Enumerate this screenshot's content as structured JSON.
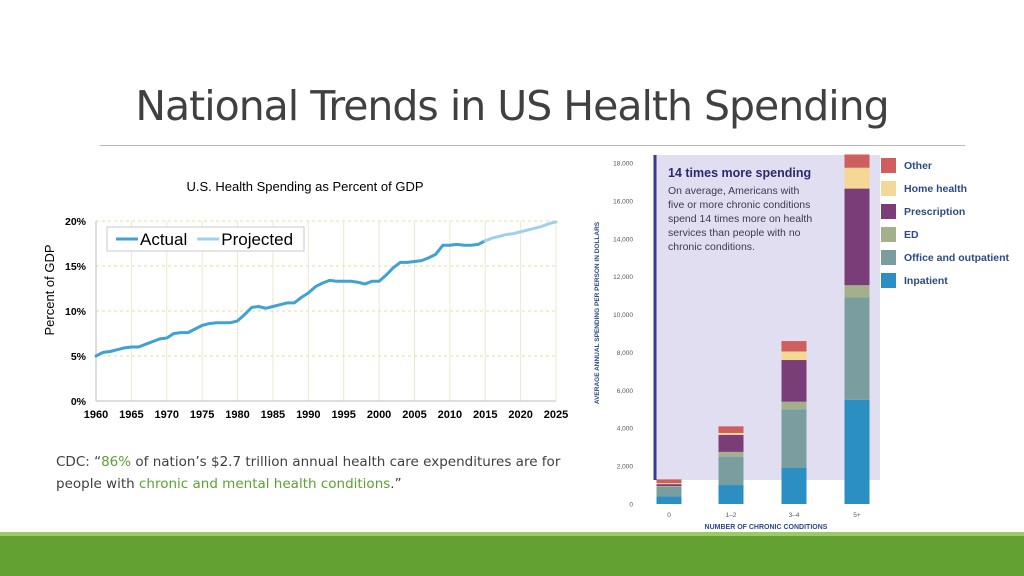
{
  "slide": {
    "title": "National Trends in US Health Spending"
  },
  "caption": {
    "prefix": "CDC: “",
    "highlight1": "86%",
    "middle": " of nation’s $2.7 trillion annual health care expenditures are for people with ",
    "highlight2": "chronic and mental health conditions",
    "suffix": ".”"
  },
  "chart_data": [
    {
      "type": "line",
      "title": "U.S. Health Spending as Percent of GDP",
      "xlabel": "",
      "ylabel": "Percent of GDP",
      "xlim": [
        1960,
        2025
      ],
      "ylim": [
        0,
        20
      ],
      "xticks": [
        1960,
        1965,
        1970,
        1975,
        1980,
        1985,
        1990,
        1995,
        2000,
        2005,
        2010,
        2015,
        2020,
        2025
      ],
      "yticks": [
        0,
        5,
        10,
        15,
        20
      ],
      "ytick_labels": [
        "0%",
        "5%",
        "10%",
        "15%",
        "20%"
      ],
      "legend": "top-left",
      "series": [
        {
          "name": "Actual",
          "color": "#3fa2d3",
          "x": [
            1960,
            1961,
            1962,
            1963,
            1964,
            1965,
            1966,
            1967,
            1968,
            1969,
            1970,
            1971,
            1972,
            1973,
            1974,
            1975,
            1976,
            1977,
            1978,
            1979,
            1980,
            1981,
            1982,
            1983,
            1984,
            1985,
            1986,
            1987,
            1988,
            1989,
            1990,
            1991,
            1992,
            1993,
            1994,
            1995,
            1996,
            1997,
            1998,
            1999,
            2000,
            2001,
            2002,
            2003,
            2004,
            2005,
            2006,
            2007,
            2008,
            2009,
            2010,
            2011,
            2012,
            2013,
            2014,
            2015
          ],
          "y": [
            5.0,
            5.4,
            5.5,
            5.7,
            5.9,
            6.0,
            6.0,
            6.3,
            6.6,
            6.9,
            7.0,
            7.5,
            7.6,
            7.6,
            8.0,
            8.4,
            8.6,
            8.7,
            8.7,
            8.7,
            8.9,
            9.6,
            10.4,
            10.5,
            10.3,
            10.5,
            10.7,
            10.9,
            10.9,
            11.5,
            12.0,
            12.7,
            13.1,
            13.4,
            13.3,
            13.3,
            13.3,
            13.2,
            13.0,
            13.3,
            13.3,
            14.0,
            14.8,
            15.4,
            15.4,
            15.5,
            15.6,
            15.9,
            16.3,
            17.3,
            17.3,
            17.4,
            17.3,
            17.3,
            17.4,
            17.8
          ]
        },
        {
          "name": "Projected",
          "color": "#9fd1ee",
          "x": [
            2015,
            2016,
            2017,
            2018,
            2019,
            2020,
            2021,
            2022,
            2023,
            2024,
            2025
          ],
          "y": [
            17.8,
            18.1,
            18.3,
            18.5,
            18.6,
            18.8,
            19.0,
            19.2,
            19.4,
            19.7,
            19.9
          ]
        }
      ]
    },
    {
      "type": "bar",
      "stacked": true,
      "xlabel": "NUMBER OF CHRONIC CONDITIONS",
      "ylabel": "AVERAGE ANNUAL SPENDING PER PERSON IN DOLLARS",
      "ylim": [
        0,
        18000
      ],
      "yticks": [
        0,
        2000,
        4000,
        6000,
        8000,
        10000,
        12000,
        14000,
        16000,
        18000
      ],
      "ytick_labels": [
        "0",
        "2,000",
        "4,000",
        "6,000",
        "8,000",
        "10,000",
        "12,000",
        "14,000",
        "16,000",
        "18,000"
      ],
      "categories": [
        "0",
        "1–2",
        "3–4",
        "5+"
      ],
      "legend": "right",
      "annotation": {
        "heading": "14 times more spending",
        "lines": [
          "On average, Americans with",
          "five or more chronic conditions",
          "spend 14 times more on health",
          "services than people with no",
          "chronic conditions."
        ]
      },
      "series": [
        {
          "name": "Inpatient",
          "color": "#2b8fc4",
          "values": [
            400,
            1000,
            1900,
            5500
          ]
        },
        {
          "name": "Office and outpatient",
          "color": "#7a9ea0",
          "values": [
            500,
            1500,
            3100,
            5400
          ]
        },
        {
          "name": "ED",
          "color": "#a3b08c",
          "values": [
            50,
            250,
            400,
            650
          ]
        },
        {
          "name": "Prescription",
          "color": "#7b3d78",
          "values": [
            100,
            900,
            2200,
            5100
          ]
        },
        {
          "name": "Home health",
          "color": "#f6d896",
          "values": [
            50,
            100,
            450,
            1100
          ]
        },
        {
          "name": "Other",
          "color": "#cf5f5f",
          "values": [
            200,
            350,
            550,
            700
          ]
        }
      ]
    }
  ]
}
